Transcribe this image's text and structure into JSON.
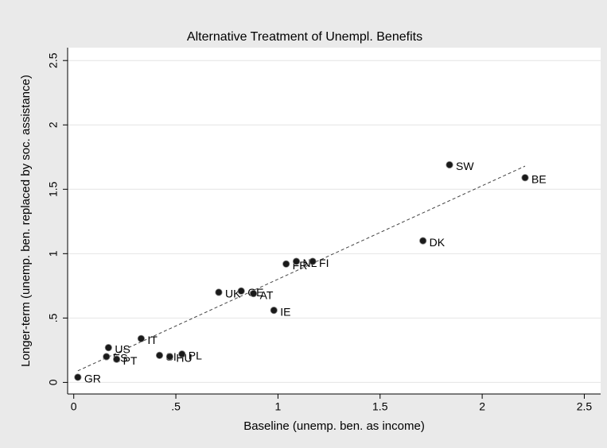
{
  "chart_data": {
    "type": "scatter",
    "title": "Alternative Treatment of Unempl. Benefits",
    "x_label": "Baseline (unemp. ben. as income)",
    "y_label": "Longer-term (unemp. ben. replaced by soc. assistance)",
    "xlim": [
      -0.03,
      2.58
    ],
    "ylim": [
      -0.09,
      2.6
    ],
    "xticks": [
      0,
      {
        "value": 0.5,
        "label": ".5"
      },
      1,
      1.5,
      2,
      2.5
    ],
    "yticks": [
      0,
      {
        "value": 0.5,
        "label": ".5"
      },
      1,
      1.5,
      2,
      2.5
    ],
    "grid": true,
    "color": "#1a1a1a",
    "labels": [
      "GR",
      "US",
      "ES",
      "PT",
      "IT",
      "SI",
      "HU",
      "PL",
      "UK",
      "GE",
      "AT",
      "IE",
      "FR",
      "NL",
      "FI",
      "DK",
      "SW",
      "BE"
    ],
    "x": [
      0.02,
      0.17,
      0.16,
      0.21,
      0.33,
      0.42,
      0.47,
      0.53,
      0.71,
      0.82,
      0.88,
      0.98,
      1.04,
      1.09,
      1.17,
      1.71,
      1.84,
      2.21
    ],
    "values": [
      0.04,
      0.27,
      0.2,
      0.18,
      0.34,
      0.21,
      0.2,
      0.22,
      0.7,
      0.71,
      0.69,
      0.56,
      0.92,
      0.94,
      0.94,
      1.1,
      1.69,
      1.59
    ],
    "fit_line": {
      "x": [
        0.02,
        2.21
      ],
      "values": [
        0.09,
        1.68
      ],
      "color": "#444444"
    }
  }
}
